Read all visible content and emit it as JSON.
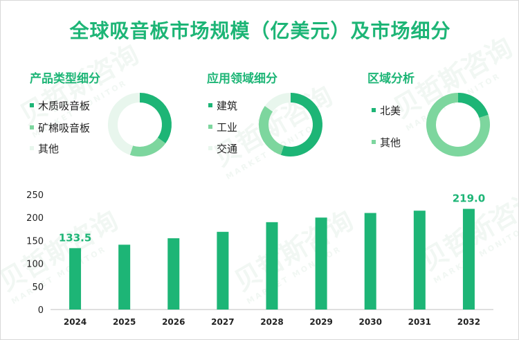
{
  "title": "全球吸音板市场规模（亿美元）及市场细分",
  "colors": {
    "accent": "#1db576",
    "mid": "#7dd69e",
    "light": "#e8f6ed",
    "bar": "#1db576"
  },
  "donuts": [
    {
      "title": "产品类型细分",
      "items": [
        {
          "label": "木质吸音板",
          "value": 35,
          "color": "#1db576"
        },
        {
          "label": "矿棉吸音板",
          "value": 20,
          "color": "#7dd69e"
        },
        {
          "label": "其他",
          "value": 45,
          "color": "#e8f6ed"
        }
      ]
    },
    {
      "title": "应用领域细分",
      "items": [
        {
          "label": "建筑",
          "value": 55,
          "color": "#1db576"
        },
        {
          "label": "工业",
          "value": 30,
          "color": "#7dd69e"
        },
        {
          "label": "交通",
          "value": 15,
          "color": "#e8f6ed"
        }
      ]
    },
    {
      "title": "区域分析",
      "items": [
        {
          "label": "北美",
          "value": 20,
          "color": "#1db576"
        },
        {
          "label": "其他",
          "value": 80,
          "color": "#7dd69e"
        }
      ]
    }
  ],
  "chart_data": {
    "type": "bar",
    "categories": [
      "2024",
      "2025",
      "2026",
      "2027",
      "2028",
      "2029",
      "2030",
      "2031",
      "2032"
    ],
    "values": [
      133.5,
      141,
      155,
      169,
      190,
      200,
      210,
      215,
      219.0
    ],
    "data_labels": [
      {
        "index": 0,
        "text": "133.5"
      },
      {
        "index": 8,
        "text": "219.0"
      }
    ],
    "yticks": [
      "0",
      "50",
      "100",
      "150",
      "200",
      "250"
    ],
    "ylim": [
      0,
      250
    ],
    "title": "",
    "xlabel": "",
    "ylabel": ""
  }
}
